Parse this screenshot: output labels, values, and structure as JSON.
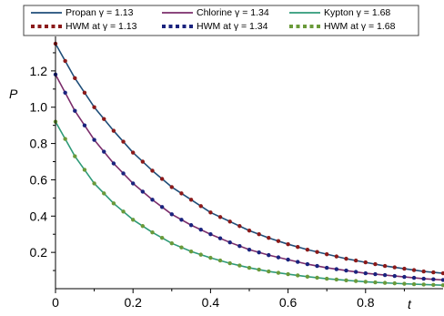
{
  "chart_data": {
    "type": "line",
    "xlabel": "t",
    "ylabel": "P",
    "xlim": [
      0,
      1.0
    ],
    "ylim": [
      0,
      1.38
    ],
    "x_ticks": [
      {
        "value": 0,
        "label": "0"
      },
      {
        "value": 0.2,
        "label": "0.2"
      },
      {
        "value": 0.4,
        "label": "0.4"
      },
      {
        "value": 0.6,
        "label": "0.6"
      },
      {
        "value": 0.8,
        "label": "0.8"
      }
    ],
    "y_ticks": [
      {
        "value": 0.2,
        "label": "0.2"
      },
      {
        "value": 0.4,
        "label": "0.4"
      },
      {
        "value": 0.6,
        "label": "0.6"
      },
      {
        "value": 0.8,
        "label": "0.8"
      },
      {
        "value": 1.0,
        "label": "1.0"
      },
      {
        "value": 1.2,
        "label": "1.2"
      }
    ],
    "grid": false,
    "legend_position": "top",
    "series": [
      {
        "name": "Propan γ = 1.13",
        "style": "solid",
        "color": "#1f4e79",
        "x": [
          0,
          0.05,
          0.1,
          0.15,
          0.2,
          0.25,
          0.3,
          0.35,
          0.4,
          0.45,
          0.5,
          0.55,
          0.6,
          0.65,
          0.7,
          0.75,
          0.8,
          0.85,
          0.9,
          0.95,
          1.0
        ],
        "y": [
          1.35,
          1.16,
          1.0,
          0.87,
          0.75,
          0.65,
          0.56,
          0.49,
          0.42,
          0.37,
          0.32,
          0.28,
          0.245,
          0.215,
          0.19,
          0.165,
          0.145,
          0.125,
          0.11,
          0.095,
          0.085
        ]
      },
      {
        "name": "Chlorine γ = 1.34",
        "style": "solid",
        "color": "#7b2d6b",
        "x": [
          0,
          0.05,
          0.1,
          0.15,
          0.2,
          0.25,
          0.3,
          0.35,
          0.4,
          0.45,
          0.5,
          0.55,
          0.6,
          0.65,
          0.7,
          0.75,
          0.8,
          0.85,
          0.9,
          0.95,
          1.0
        ],
        "y": [
          1.18,
          0.98,
          0.82,
          0.69,
          0.58,
          0.49,
          0.41,
          0.35,
          0.3,
          0.255,
          0.215,
          0.185,
          0.16,
          0.135,
          0.115,
          0.1,
          0.085,
          0.075,
          0.065,
          0.055,
          0.048
        ]
      },
      {
        "name": "Kypton γ = 1.68",
        "style": "solid",
        "color": "#2e9a78",
        "x": [
          0,
          0.05,
          0.1,
          0.15,
          0.2,
          0.25,
          0.3,
          0.35,
          0.4,
          0.45,
          0.5,
          0.55,
          0.6,
          0.65,
          0.7,
          0.75,
          0.8,
          0.85,
          0.9,
          0.95,
          1.0
        ],
        "y": [
          0.92,
          0.73,
          0.58,
          0.47,
          0.38,
          0.31,
          0.25,
          0.205,
          0.17,
          0.14,
          0.115,
          0.095,
          0.08,
          0.066,
          0.055,
          0.046,
          0.038,
          0.032,
          0.027,
          0.023,
          0.019
        ]
      },
      {
        "name": "HWM at γ = 1.13",
        "style": "dots",
        "color": "#8b1a1a",
        "x": [
          0,
          0.05,
          0.1,
          0.15,
          0.2,
          0.25,
          0.3,
          0.35,
          0.4,
          0.45,
          0.5,
          0.55,
          0.6,
          0.65,
          0.7,
          0.75,
          0.8,
          0.85,
          0.9,
          0.95,
          1.0
        ],
        "y": [
          1.35,
          1.16,
          1.0,
          0.87,
          0.75,
          0.65,
          0.56,
          0.49,
          0.42,
          0.37,
          0.32,
          0.28,
          0.245,
          0.215,
          0.19,
          0.165,
          0.145,
          0.125,
          0.11,
          0.095,
          0.085
        ]
      },
      {
        "name": "HWM at γ = 1.34",
        "style": "dots",
        "color": "#1a237e",
        "x": [
          0,
          0.05,
          0.1,
          0.15,
          0.2,
          0.25,
          0.3,
          0.35,
          0.4,
          0.45,
          0.5,
          0.55,
          0.6,
          0.65,
          0.7,
          0.75,
          0.8,
          0.85,
          0.9,
          0.95,
          1.0
        ],
        "y": [
          1.18,
          0.98,
          0.82,
          0.69,
          0.58,
          0.49,
          0.41,
          0.35,
          0.3,
          0.255,
          0.215,
          0.185,
          0.16,
          0.135,
          0.115,
          0.1,
          0.085,
          0.075,
          0.065,
          0.055,
          0.048
        ]
      },
      {
        "name": "HWM at γ = 1.68",
        "style": "dots",
        "color": "#6a9a3a",
        "x": [
          0,
          0.05,
          0.1,
          0.15,
          0.2,
          0.25,
          0.3,
          0.35,
          0.4,
          0.45,
          0.5,
          0.55,
          0.6,
          0.65,
          0.7,
          0.75,
          0.8,
          0.85,
          0.9,
          0.95,
          1.0
        ],
        "y": [
          0.92,
          0.73,
          0.58,
          0.47,
          0.38,
          0.31,
          0.25,
          0.205,
          0.17,
          0.14,
          0.115,
          0.095,
          0.08,
          0.066,
          0.055,
          0.046,
          0.038,
          0.032,
          0.027,
          0.023,
          0.019
        ]
      }
    ]
  }
}
